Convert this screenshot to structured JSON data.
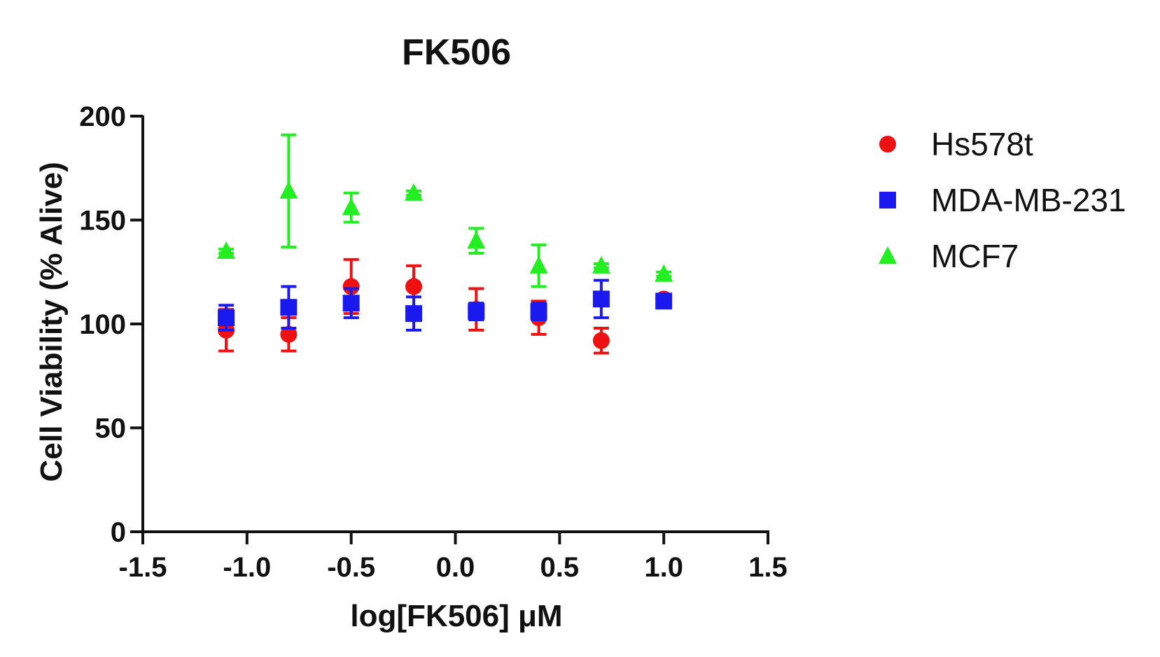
{
  "chart_data": {
    "type": "scatter",
    "title": "FK506",
    "xlabel": "log[FK506] μM",
    "ylabel": "Cell Viability  (%  Alive)",
    "xlim": [
      -1.5,
      1.5
    ],
    "ylim": [
      0,
      200
    ],
    "xticks": [
      -1.5,
      -1.0,
      -0.5,
      0.0,
      0.5,
      1.0,
      1.5
    ],
    "xtick_labels": [
      "-1.5",
      "-1.0",
      "-0.5",
      "0.0",
      "0.5",
      "1.0",
      "1.5"
    ],
    "yticks": [
      0,
      50,
      100,
      150,
      200
    ],
    "ytick_labels": [
      "0",
      "50",
      "100",
      "150",
      "200"
    ],
    "grid": false,
    "legend_position": "right",
    "series": [
      {
        "name": "Hs578t",
        "marker": "circle",
        "color": "#ee1111",
        "points": [
          {
            "x": -1.1,
            "y": 97,
            "err": 10
          },
          {
            "x": -0.8,
            "y": 95,
            "err": 8
          },
          {
            "x": -0.5,
            "y": 118,
            "err": 13
          },
          {
            "x": -0.2,
            "y": 118,
            "err": 10
          },
          {
            "x": 0.1,
            "y": 107,
            "err": 10
          },
          {
            "x": 0.4,
            "y": 103,
            "err": 8
          },
          {
            "x": 0.7,
            "y": 92,
            "err": 6
          },
          {
            "x": 1.0,
            "y": 112,
            "err": 2
          }
        ]
      },
      {
        "name": "MDA-MB-231",
        "marker": "square",
        "color": "#1a1aee",
        "points": [
          {
            "x": -1.1,
            "y": 103,
            "err": 6
          },
          {
            "x": -0.8,
            "y": 108,
            "err": 10
          },
          {
            "x": -0.5,
            "y": 110,
            "err": 7
          },
          {
            "x": -0.2,
            "y": 105,
            "err": 8
          },
          {
            "x": 0.1,
            "y": 106,
            "err": 4
          },
          {
            "x": 0.4,
            "y": 106,
            "err": 4
          },
          {
            "x": 0.7,
            "y": 112,
            "err": 9
          },
          {
            "x": 1.0,
            "y": 111,
            "err": 2
          }
        ]
      },
      {
        "name": "MCF7",
        "marker": "triangle",
        "color": "#22ee22",
        "points": [
          {
            "x": -1.1,
            "y": 135,
            "err": 1
          },
          {
            "x": -0.8,
            "y": 164,
            "err": 27
          },
          {
            "x": -0.5,
            "y": 156,
            "err": 7
          },
          {
            "x": -0.2,
            "y": 163,
            "err": 1
          },
          {
            "x": 0.1,
            "y": 140,
            "err": 6
          },
          {
            "x": 0.4,
            "y": 128,
            "err": 10
          },
          {
            "x": 0.7,
            "y": 128,
            "err": 1
          },
          {
            "x": 1.0,
            "y": 124,
            "err": 1
          }
        ]
      }
    ]
  }
}
